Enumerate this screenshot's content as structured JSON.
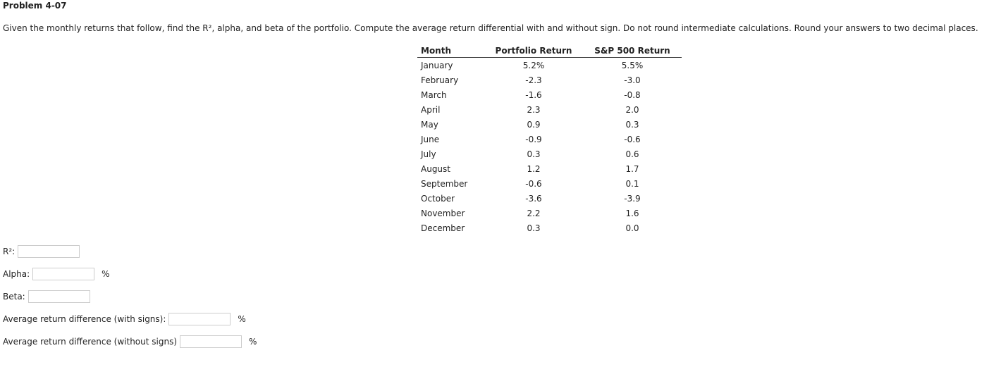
{
  "header": {
    "title": "Problem 4-07",
    "instructions": "Given the monthly returns that follow, find the R², alpha, and beta of the portfolio. Compute the average return differential with and without sign. Do not round intermediate calculations. Round your answers to two decimal places."
  },
  "table": {
    "columns": [
      "Month",
      "Portfolio Return",
      "S&P 500 Return"
    ],
    "rows": [
      [
        "January",
        "5.2%",
        "5.5%"
      ],
      [
        "February",
        "-2.3",
        "-3.0"
      ],
      [
        "March",
        "-1.6",
        "-0.8"
      ],
      [
        "April",
        "2.3",
        "2.0"
      ],
      [
        "May",
        "0.9",
        "0.3"
      ],
      [
        "June",
        "-0.9",
        "-0.6"
      ],
      [
        "July",
        "0.3",
        "0.6"
      ],
      [
        "August",
        "1.2",
        "1.7"
      ],
      [
        "September",
        "-0.6",
        "0.1"
      ],
      [
        "October",
        "-3.6",
        "-3.9"
      ],
      [
        "November",
        "2.2",
        "1.6"
      ],
      [
        "December",
        "0.3",
        "0.0"
      ]
    ]
  },
  "fields": [
    {
      "label": "R²:"
    },
    {
      "label": "Alpha:",
      "unit": "%"
    },
    {
      "label": "Beta:"
    },
    {
      "label": "Average return difference (with signs):",
      "unit": "%"
    },
    {
      "label": "Average return difference (without signs)",
      "unit": "%"
    }
  ]
}
